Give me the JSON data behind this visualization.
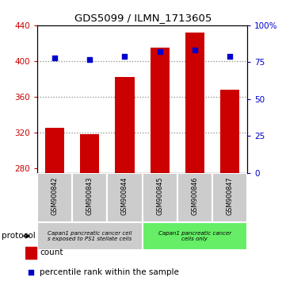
{
  "title": "GDS5099 / ILMN_1713605",
  "samples": [
    "GSM900842",
    "GSM900843",
    "GSM900844",
    "GSM900845",
    "GSM900846",
    "GSM900847"
  ],
  "counts": [
    325,
    318,
    382,
    415,
    432,
    368
  ],
  "percentiles": [
    78,
    77,
    79,
    82,
    83,
    79
  ],
  "ylim_left": [
    275,
    440
  ],
  "ylim_right": [
    0,
    100
  ],
  "yticks_left": [
    280,
    320,
    360,
    400,
    440
  ],
  "yticks_right": [
    0,
    25,
    50,
    75,
    100
  ],
  "ytick_labels_right": [
    "0",
    "25",
    "50",
    "75",
    "100%"
  ],
  "bar_color": "#cc0000",
  "scatter_color": "#0000cc",
  "protocol_groups": [
    {
      "label": "Capan1 pancreatic cancer cell\ns exposed to PS1 stellate cells",
      "indices": [
        0,
        1,
        2
      ],
      "bg_color": "#cccccc"
    },
    {
      "label": "Capan1 pancreatic cancer\ncells only",
      "indices": [
        3,
        4,
        5
      ],
      "bg_color": "#66ee66"
    }
  ],
  "legend_count_label": "count",
  "legend_pct_label": "percentile rank within the sample",
  "protocol_label": "protocol",
  "grid_yticks": [
    320,
    360,
    400
  ],
  "bar_width": 0.55,
  "sample_box_color": "#cccccc",
  "plot_bg": "white",
  "fig_bg": "white"
}
